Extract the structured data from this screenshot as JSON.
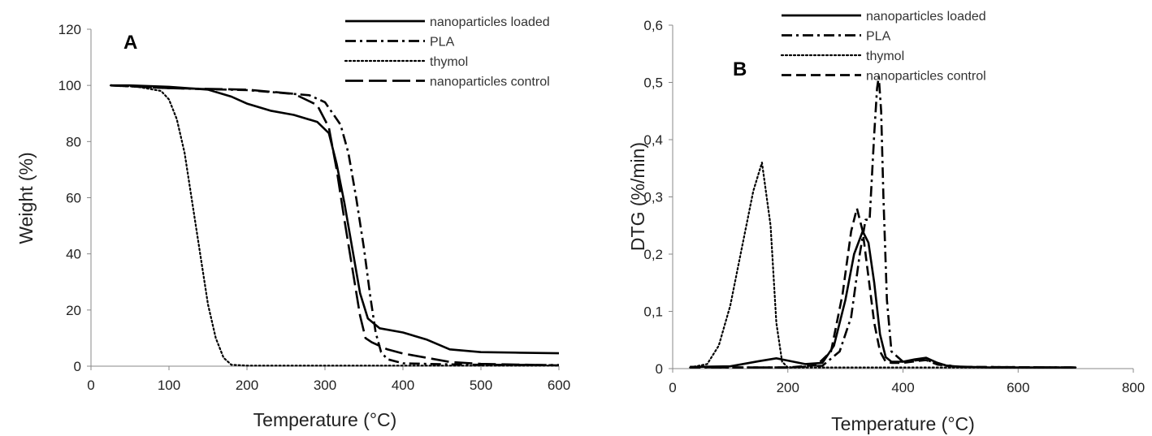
{
  "chart_data": [
    {
      "type": "line",
      "panel_label": "A",
      "xlabel": "Temperature (°C)",
      "ylabel": "Weight (%)",
      "xlim": [
        0,
        600
      ],
      "ylim": [
        0,
        120
      ],
      "xticks": [
        "0",
        "100",
        "200",
        "300",
        "400",
        "500",
        "600"
      ],
      "yticks": [
        "0",
        "20",
        "40",
        "60",
        "80",
        "100",
        "120"
      ],
      "grid": false,
      "legend_position": "top-right",
      "series": [
        {
          "name": "nanoparticles loaded",
          "style": "solid",
          "x": [
            25,
            50,
            100,
            150,
            180,
            200,
            230,
            260,
            290,
            305,
            315,
            325,
            335,
            345,
            355,
            370,
            400,
            430,
            460,
            500,
            550,
            600
          ],
          "y": [
            100,
            100,
            99.5,
            98.5,
            96,
            93.5,
            91,
            89.5,
            87,
            83,
            72,
            58,
            42,
            26,
            17,
            13.5,
            12,
            9.5,
            6,
            5,
            4.8,
            4.6
          ]
        },
        {
          "name": "PLA",
          "style": "dashdot",
          "x": [
            25,
            100,
            200,
            280,
            300,
            320,
            330,
            340,
            350,
            358,
            365,
            372,
            380,
            400,
            450,
            500,
            600
          ],
          "y": [
            100,
            99,
            98.3,
            96.5,
            94,
            86,
            76,
            60,
            42,
            25,
            12,
            5,
            2.5,
            1,
            0.7,
            0.5,
            0.4
          ]
        },
        {
          "name": "thymol",
          "style": "dotted",
          "x": [
            25,
            60,
            90,
            100,
            110,
            120,
            130,
            140,
            150,
            160,
            170,
            180,
            200,
            300,
            400,
            600
          ],
          "y": [
            100,
            99.5,
            98,
            95,
            88,
            76,
            58,
            40,
            22,
            10,
            3,
            0.5,
            0.2,
            0.2,
            0.2,
            0.2
          ]
        },
        {
          "name": "nanoparticles control",
          "style": "longdash",
          "x": [
            25,
            100,
            200,
            260,
            290,
            305,
            315,
            325,
            335,
            345,
            352,
            360,
            380,
            400,
            430,
            460,
            500,
            600
          ],
          "y": [
            100,
            99,
            98.5,
            97,
            93,
            85,
            70,
            52,
            35,
            18,
            10,
            8.5,
            6,
            4.5,
            3,
            1.5,
            0.8,
            0.3
          ]
        }
      ]
    },
    {
      "type": "line",
      "panel_label": "B",
      "xlabel": "Temperature (°C)",
      "ylabel": "DTG (%/min)",
      "xlim": [
        0,
        800
      ],
      "ylim": [
        0,
        0.6
      ],
      "xticks": [
        "0",
        "200",
        "400",
        "600",
        "800"
      ],
      "yticks": [
        "0",
        "0,1",
        "0,2",
        "0,3",
        "0,4",
        "0,5",
        "0,6"
      ],
      "grid": false,
      "legend_position": "top-right",
      "series": [
        {
          "name": "nanoparticles loaded",
          "style": "solid",
          "x": [
            30,
            100,
            150,
            180,
            200,
            230,
            260,
            280,
            300,
            315,
            330,
            340,
            350,
            360,
            370,
            380,
            400,
            420,
            440,
            460,
            480,
            550,
            700
          ],
          "y": [
            0.003,
            0.004,
            0.013,
            0.018,
            0.014,
            0.008,
            0.01,
            0.04,
            0.12,
            0.2,
            0.24,
            0.22,
            0.15,
            0.06,
            0.02,
            0.012,
            0.012,
            0.016,
            0.019,
            0.01,
            0.004,
            0.002,
            0.002
          ]
        },
        {
          "name": "PLA",
          "style": "dashdot",
          "x": [
            30,
            100,
            200,
            260,
            290,
            310,
            325,
            335,
            342,
            350,
            355,
            358,
            362,
            366,
            372,
            380,
            400,
            440,
            460,
            500,
            700
          ],
          "y": [
            0.002,
            0.002,
            0.002,
            0.005,
            0.03,
            0.09,
            0.2,
            0.26,
            0.26,
            0.41,
            0.49,
            0.51,
            0.45,
            0.3,
            0.12,
            0.03,
            0.012,
            0.016,
            0.008,
            0.003,
            0.002
          ]
        },
        {
          "name": "thymol",
          "style": "dotted",
          "x": [
            30,
            60,
            80,
            100,
            120,
            140,
            155,
            170,
            180,
            190,
            200,
            300,
            400,
            700
          ],
          "y": [
            0.002,
            0.008,
            0.04,
            0.11,
            0.21,
            0.31,
            0.36,
            0.25,
            0.08,
            0.012,
            0.002,
            0.002,
            0.002,
            0.002
          ]
        },
        {
          "name": "nanoparticles control",
          "style": "dashed",
          "x": [
            30,
            100,
            200,
            250,
            275,
            295,
            310,
            320,
            330,
            340,
            350,
            360,
            370,
            380,
            400,
            440,
            460,
            500,
            700
          ],
          "y": [
            0.003,
            0.002,
            0.002,
            0.006,
            0.03,
            0.13,
            0.24,
            0.28,
            0.24,
            0.16,
            0.08,
            0.03,
            0.012,
            0.01,
            0.01,
            0.015,
            0.007,
            0.003,
            0.002
          ]
        }
      ]
    }
  ]
}
